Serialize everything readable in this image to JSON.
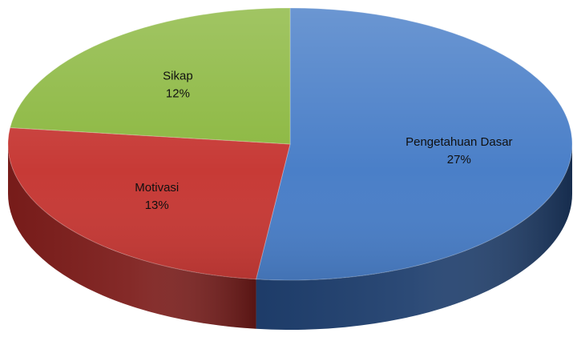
{
  "chart_data": {
    "type": "pie",
    "style": "3d-tilted",
    "title": "",
    "slices": [
      {
        "label": "Pengetahuan Dasar",
        "value": 27,
        "value_label": "27%",
        "color": "#4a7fc8",
        "side_color": "#1f3f6e"
      },
      {
        "label": "Motivasi",
        "value": 13,
        "value_label": "13%",
        "color": "#c73a36",
        "side_color": "#7d1d1b"
      },
      {
        "label": "Sikap",
        "value": 12,
        "value_label": "12%",
        "color": "#8cb841",
        "side_color": "#5d7d28"
      }
    ],
    "start_angle_deg": -90,
    "direction": "clockwise",
    "legend": "none"
  }
}
